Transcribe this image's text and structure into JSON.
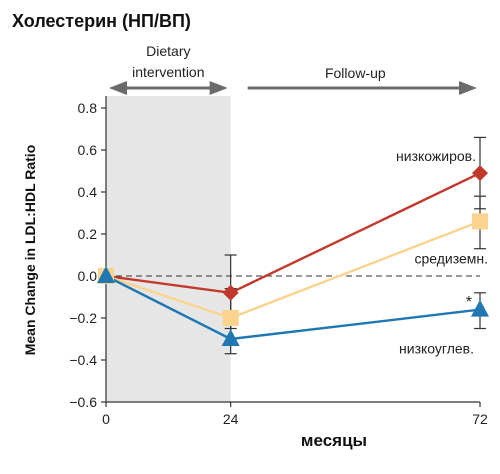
{
  "chart_data": {
    "type": "line",
    "title": "Холестерин (НП/ВП)",
    "xlabel": "месяцы",
    "ylabel": "Mean Change in LDL:HDL Ratio",
    "x": [
      0,
      24,
      72
    ],
    "x_ticks": [
      "0",
      "24",
      "72"
    ],
    "y_ticks": [
      "0.8",
      "0.6",
      "0.4",
      "0.2",
      "0.0",
      "−0.2",
      "−0.4",
      "−0.6"
    ],
    "y_tick_values": [
      0.8,
      0.6,
      0.4,
      0.2,
      0.0,
      -0.2,
      -0.4,
      -0.6
    ],
    "xlim": [
      0,
      72
    ],
    "ylim": [
      -0.6,
      0.8
    ],
    "grid": false,
    "reference_line": 0.0,
    "phases": [
      {
        "label_line1": "Dietary",
        "label_line2": "intervention",
        "x_start": 0,
        "x_end": 24,
        "shaded": true
      },
      {
        "label_line1": "Follow-up",
        "label_line2": "",
        "x_start": 24,
        "x_end": 72,
        "shaded": false
      }
    ],
    "series": [
      {
        "name": "низкожиров.",
        "color": "#c0392b",
        "marker": "diamond",
        "values": [
          0.0,
          -0.08,
          0.49
        ],
        "err_low": [
          null,
          -0.25,
          0.32
        ],
        "err_high": [
          null,
          0.1,
          0.66
        ]
      },
      {
        "name": "средиземн.",
        "color": "#fbd38d",
        "marker": "square",
        "values": [
          0.0,
          -0.2,
          0.26
        ],
        "err_low": [
          null,
          -0.33,
          0.13
        ],
        "err_high": [
          null,
          -0.06,
          0.38
        ]
      },
      {
        "name": "низкоуглев.",
        "color": "#1f78b4",
        "marker": "triangle",
        "values": [
          0.0,
          -0.3,
          -0.16
        ],
        "err_low": [
          null,
          -0.37,
          -0.25
        ],
        "err_high": [
          null,
          -0.23,
          -0.08
        ]
      }
    ],
    "annotations": [
      {
        "text": "*",
        "series": "низкоуглев."
      }
    ],
    "colors": {
      "phase_shade": "#e6e6e7",
      "phase_arrow": "#6b6b6b",
      "axis": "#333333",
      "error_bar": "#333333"
    }
  }
}
